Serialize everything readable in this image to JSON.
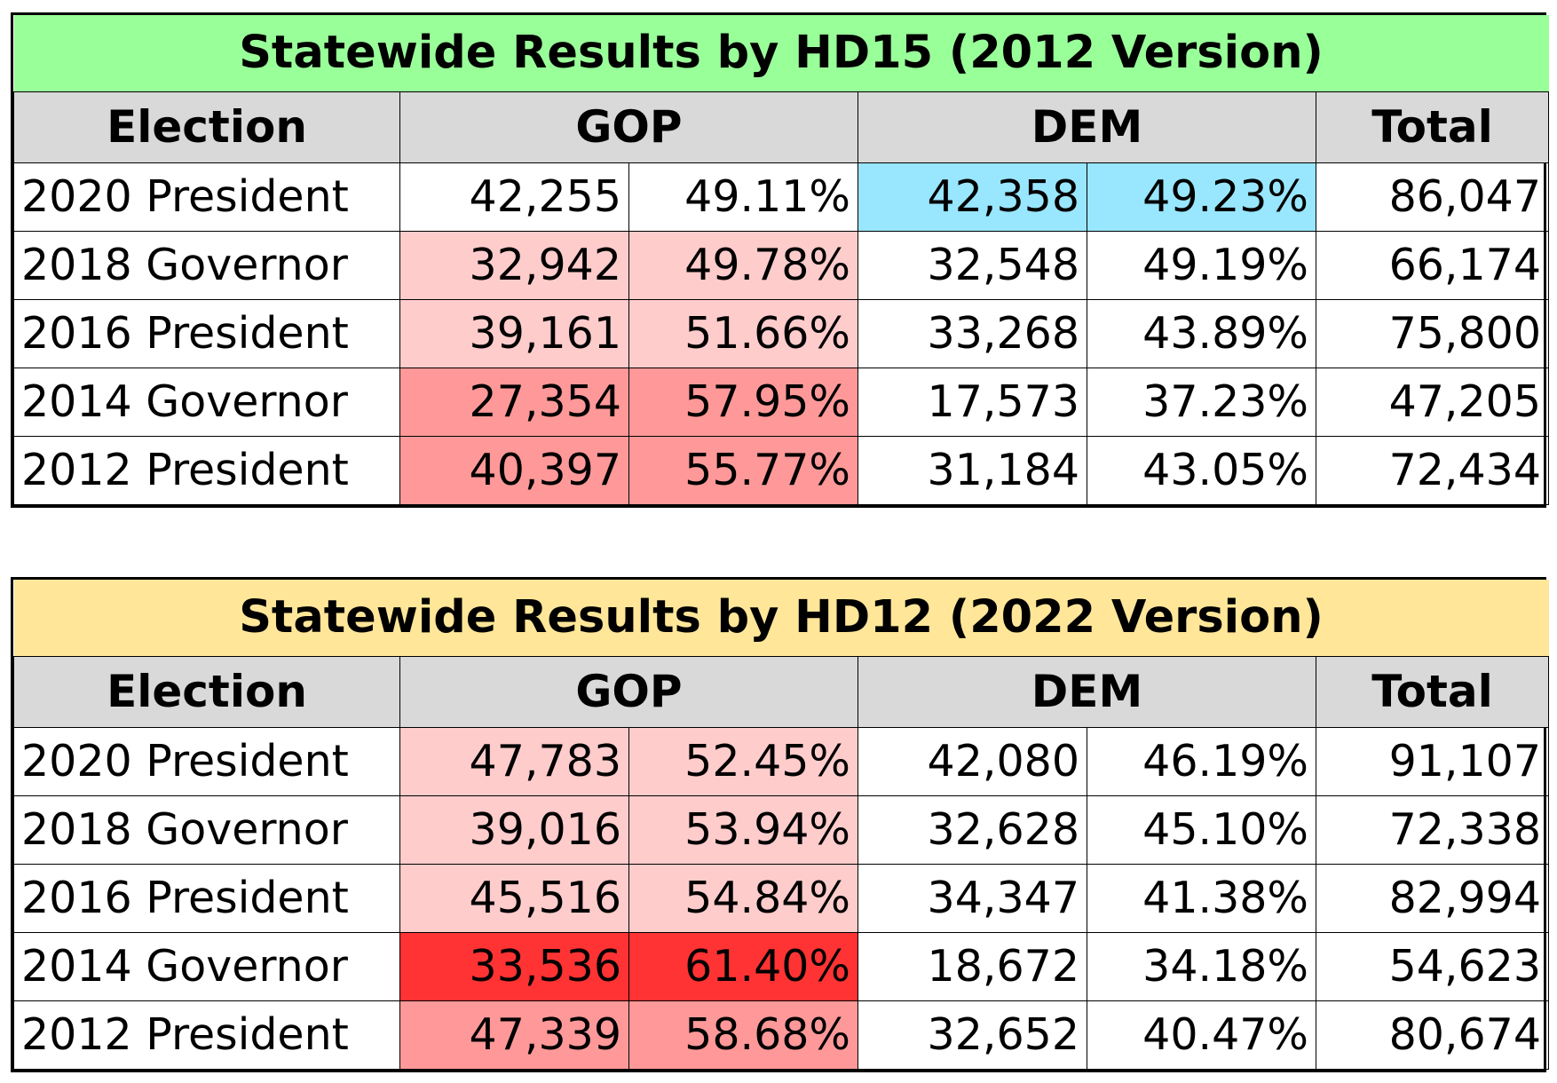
{
  "colors": {
    "title_green": "#99ff99",
    "title_yellow": "#ffe699",
    "header_gray": "#d9d9d9",
    "light_red": "#ffcccc",
    "medium_red": "#ff9999",
    "strong_red": "#ff3333",
    "light_blue": "#99e6ff",
    "white": "#ffffff"
  },
  "headers": {
    "election": "Election",
    "gop": "GOP",
    "dem": "DEM",
    "total": "Total"
  },
  "tables": [
    {
      "title": "Statewide Results by HD15 (2012 Version)",
      "title_color": "#99ff99",
      "rows": [
        {
          "election": "2020 President",
          "gop_votes": "42,255",
          "gop_pct": "49.11%",
          "dem_votes": "42,358",
          "dem_pct": "49.23%",
          "total": "86,047",
          "gop_color": "#ffffff",
          "dem_color": "#99e6ff"
        },
        {
          "election": "2018 Governor",
          "gop_votes": "32,942",
          "gop_pct": "49.78%",
          "dem_votes": "32,548",
          "dem_pct": "49.19%",
          "total": "66,174",
          "gop_color": "#ffcccc",
          "dem_color": "#ffffff"
        },
        {
          "election": "2016 President",
          "gop_votes": "39,161",
          "gop_pct": "51.66%",
          "dem_votes": "33,268",
          "dem_pct": "43.89%",
          "total": "75,800",
          "gop_color": "#ffcccc",
          "dem_color": "#ffffff"
        },
        {
          "election": "2014 Governor",
          "gop_votes": "27,354",
          "gop_pct": "57.95%",
          "dem_votes": "17,573",
          "dem_pct": "37.23%",
          "total": "47,205",
          "gop_color": "#ff9999",
          "dem_color": "#ffffff"
        },
        {
          "election": "2012 President",
          "gop_votes": "40,397",
          "gop_pct": "55.77%",
          "dem_votes": "31,184",
          "dem_pct": "43.05%",
          "total": "72,434",
          "gop_color": "#ff9999",
          "dem_color": "#ffffff"
        }
      ]
    },
    {
      "title": "Statewide Results by HD12 (2022 Version)",
      "title_color": "#ffe699",
      "rows": [
        {
          "election": "2020 President",
          "gop_votes": "47,783",
          "gop_pct": "52.45%",
          "dem_votes": "42,080",
          "dem_pct": "46.19%",
          "total": "91,107",
          "gop_color": "#ffcccc",
          "dem_color": "#ffffff"
        },
        {
          "election": "2018 Governor",
          "gop_votes": "39,016",
          "gop_pct": "53.94%",
          "dem_votes": "32,628",
          "dem_pct": "45.10%",
          "total": "72,338",
          "gop_color": "#ffcccc",
          "dem_color": "#ffffff"
        },
        {
          "election": "2016 President",
          "gop_votes": "45,516",
          "gop_pct": "54.84%",
          "dem_votes": "34,347",
          "dem_pct": "41.38%",
          "total": "82,994",
          "gop_color": "#ffcccc",
          "dem_color": "#ffffff"
        },
        {
          "election": "2014 Governor",
          "gop_votes": "33,536",
          "gop_pct": "61.40%",
          "dem_votes": "18,672",
          "dem_pct": "34.18%",
          "total": "54,623",
          "gop_color": "#ff3333",
          "dem_color": "#ffffff"
        },
        {
          "election": "2012 President",
          "gop_votes": "47,339",
          "gop_pct": "58.68%",
          "dem_votes": "32,652",
          "dem_pct": "40.47%",
          "total": "80,674",
          "gop_color": "#ff9999",
          "dem_color": "#ffffff"
        }
      ]
    }
  ]
}
